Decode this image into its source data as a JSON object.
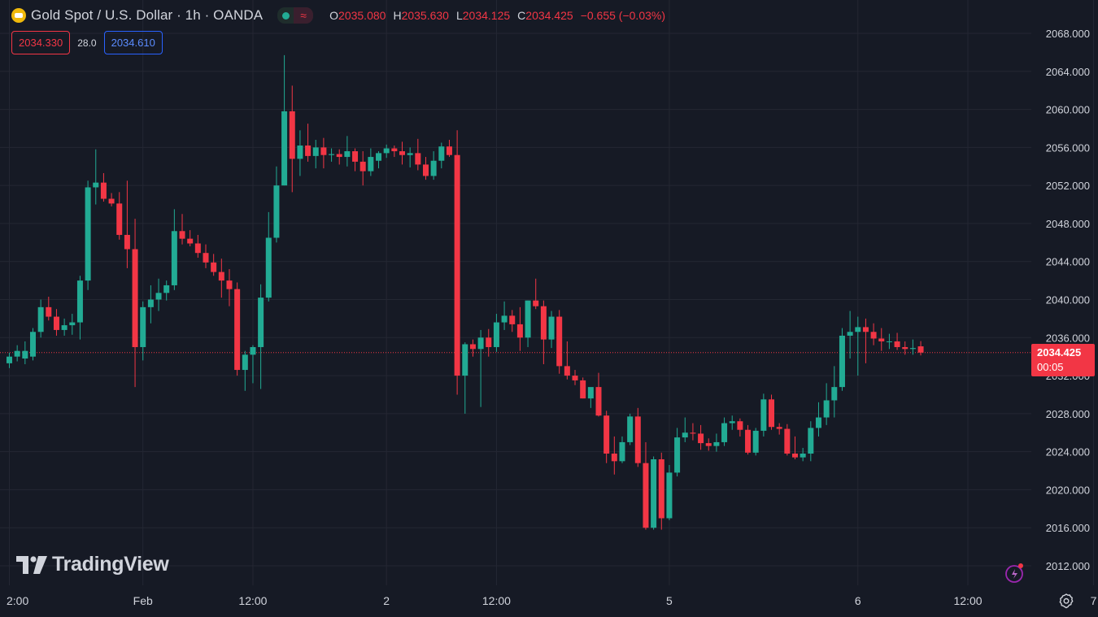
{
  "header": {
    "title": "Gold Spot / U.S. Dollar · 1h · OANDA",
    "ohlc": {
      "o_label": "O",
      "o": "2035.080",
      "h_label": "H",
      "h": "2035.630",
      "l_label": "L",
      "l": "2034.125",
      "c_label": "C",
      "c": "2034.425",
      "change": "−0.655 (−0.03%)"
    }
  },
  "trade": {
    "sell": "2034.330",
    "spread": "28.0",
    "buy": "2034.610"
  },
  "last_price": {
    "value": "2034.425",
    "countdown": "00:05"
  },
  "brand": "TradingView",
  "colors": {
    "up": "#22ab94",
    "down": "#f23645",
    "background": "#161a25",
    "grid": "#242733",
    "accent": "#2962ff"
  },
  "chart_data": {
    "type": "candlestick",
    "title": "Gold Spot / U.S. Dollar",
    "timeframe": "1h",
    "ylim": [
      2010.0,
      2070.0
    ],
    "y_ticks": [
      "2012.000",
      "2016.000",
      "2020.000",
      "2024.000",
      "2028.000",
      "2032.000",
      "2036.000",
      "2040.000",
      "2044.000",
      "2048.000",
      "2052.000",
      "2056.000",
      "2060.000",
      "2064.000",
      "2068.000"
    ],
    "x_tick_labels": [
      {
        "label": "2:00",
        "index": 0
      },
      {
        "label": "Feb",
        "index": 17
      },
      {
        "label": "12:00",
        "index": 31
      },
      {
        "label": "2",
        "index": 48
      },
      {
        "label": "12:00",
        "index": 62
      },
      {
        "label": "5",
        "index": 84
      },
      {
        "label": "6",
        "index": 108
      },
      {
        "label": "12:00",
        "index": 122
      },
      {
        "label": "7",
        "index": 138
      }
    ],
    "grid": true,
    "last_price_line": 2034.425,
    "candles": [
      {
        "o": 2033.3,
        "h": 2034.4,
        "l": 2032.8,
        "c": 2034.0
      },
      {
        "o": 2034.0,
        "h": 2035.2,
        "l": 2033.5,
        "c": 2034.6
      },
      {
        "o": 2033.8,
        "h": 2035.6,
        "l": 2033.2,
        "c": 2034.6
      },
      {
        "o": 2034.0,
        "h": 2037.0,
        "l": 2033.6,
        "c": 2036.6
      },
      {
        "o": 2036.6,
        "h": 2040.0,
        "l": 2036.0,
        "c": 2039.2
      },
      {
        "o": 2039.2,
        "h": 2040.3,
        "l": 2037.8,
        "c": 2038.2
      },
      {
        "o": 2038.2,
        "h": 2039.0,
        "l": 2036.2,
        "c": 2036.8
      },
      {
        "o": 2036.8,
        "h": 2038.0,
        "l": 2036.2,
        "c": 2037.3
      },
      {
        "o": 2037.3,
        "h": 2038.5,
        "l": 2036.3,
        "c": 2037.6
      },
      {
        "o": 2037.6,
        "h": 2042.5,
        "l": 2035.8,
        "c": 2042.0
      },
      {
        "o": 2042.0,
        "h": 2052.5,
        "l": 2041.0,
        "c": 2051.8
      },
      {
        "o": 2051.8,
        "h": 2055.8,
        "l": 2050.0,
        "c": 2052.3
      },
      {
        "o": 2052.3,
        "h": 2053.3,
        "l": 2050.3,
        "c": 2050.6
      },
      {
        "o": 2050.6,
        "h": 2051.2,
        "l": 2049.8,
        "c": 2050.1
      },
      {
        "o": 2050.1,
        "h": 2051.3,
        "l": 2046.3,
        "c": 2046.8
      },
      {
        "o": 2046.8,
        "h": 2052.5,
        "l": 2043.3,
        "c": 2045.3
      },
      {
        "o": 2045.3,
        "h": 2048.5,
        "l": 2030.8,
        "c": 2035.0
      },
      {
        "o": 2035.0,
        "h": 2039.8,
        "l": 2033.6,
        "c": 2039.2
      },
      {
        "o": 2039.2,
        "h": 2041.5,
        "l": 2037.5,
        "c": 2040.0
      },
      {
        "o": 2040.0,
        "h": 2042.2,
        "l": 2038.8,
        "c": 2040.7
      },
      {
        "o": 2040.7,
        "h": 2042.0,
        "l": 2039.9,
        "c": 2041.5
      },
      {
        "o": 2041.5,
        "h": 2049.5,
        "l": 2041.0,
        "c": 2047.2
      },
      {
        "o": 2047.2,
        "h": 2049.0,
        "l": 2045.8,
        "c": 2046.4
      },
      {
        "o": 2046.4,
        "h": 2047.3,
        "l": 2045.6,
        "c": 2045.9
      },
      {
        "o": 2045.9,
        "h": 2046.8,
        "l": 2044.4,
        "c": 2044.9
      },
      {
        "o": 2044.9,
        "h": 2045.8,
        "l": 2043.3,
        "c": 2043.9
      },
      {
        "o": 2043.9,
        "h": 2044.8,
        "l": 2042.5,
        "c": 2042.9
      },
      {
        "o": 2042.9,
        "h": 2044.3,
        "l": 2040.2,
        "c": 2042.0
      },
      {
        "o": 2042.0,
        "h": 2043.2,
        "l": 2039.3,
        "c": 2041.1
      },
      {
        "o": 2041.1,
        "h": 2041.8,
        "l": 2032.0,
        "c": 2032.6
      },
      {
        "o": 2032.6,
        "h": 2034.6,
        "l": 2030.4,
        "c": 2034.2
      },
      {
        "o": 2034.2,
        "h": 2035.2,
        "l": 2031.2,
        "c": 2035.0
      },
      {
        "o": 2035.0,
        "h": 2041.6,
        "l": 2030.6,
        "c": 2040.2
      },
      {
        "o": 2040.2,
        "h": 2049.2,
        "l": 2039.8,
        "c": 2046.5
      },
      {
        "o": 2046.5,
        "h": 2054.0,
        "l": 2046.0,
        "c": 2052.0
      },
      {
        "o": 2052.0,
        "h": 2065.7,
        "l": 2052.0,
        "c": 2059.8
      },
      {
        "o": 2059.8,
        "h": 2062.5,
        "l": 2051.3,
        "c": 2054.8
      },
      {
        "o": 2054.8,
        "h": 2057.8,
        "l": 2053.0,
        "c": 2056.2
      },
      {
        "o": 2056.2,
        "h": 2058.5,
        "l": 2054.5,
        "c": 2055.1
      },
      {
        "o": 2055.1,
        "h": 2056.8,
        "l": 2053.8,
        "c": 2056.0
      },
      {
        "o": 2056.0,
        "h": 2057.0,
        "l": 2053.8,
        "c": 2055.2
      },
      {
        "o": 2055.2,
        "h": 2055.9,
        "l": 2054.5,
        "c": 2055.3
      },
      {
        "o": 2055.3,
        "h": 2055.8,
        "l": 2054.2,
        "c": 2055.0
      },
      {
        "o": 2055.0,
        "h": 2057.2,
        "l": 2054.0,
        "c": 2055.6
      },
      {
        "o": 2055.6,
        "h": 2055.9,
        "l": 2053.5,
        "c": 2054.5
      },
      {
        "o": 2054.5,
        "h": 2055.6,
        "l": 2052.0,
        "c": 2053.5
      },
      {
        "o": 2053.5,
        "h": 2055.9,
        "l": 2053.0,
        "c": 2055.0
      },
      {
        "o": 2054.6,
        "h": 2055.6,
        "l": 2053.8,
        "c": 2055.4
      },
      {
        "o": 2055.4,
        "h": 2056.3,
        "l": 2054.9,
        "c": 2055.9
      },
      {
        "o": 2055.9,
        "h": 2056.2,
        "l": 2055.0,
        "c": 2055.6
      },
      {
        "o": 2055.6,
        "h": 2056.6,
        "l": 2054.2,
        "c": 2055.2
      },
      {
        "o": 2055.2,
        "h": 2056.0,
        "l": 2053.9,
        "c": 2055.4
      },
      {
        "o": 2055.4,
        "h": 2056.9,
        "l": 2053.6,
        "c": 2054.2
      },
      {
        "o": 2054.2,
        "h": 2055.0,
        "l": 2052.6,
        "c": 2053.0
      },
      {
        "o": 2053.0,
        "h": 2055.6,
        "l": 2052.6,
        "c": 2054.6
      },
      {
        "o": 2054.6,
        "h": 2056.5,
        "l": 2053.8,
        "c": 2056.1
      },
      {
        "o": 2056.1,
        "h": 2056.8,
        "l": 2055.0,
        "c": 2055.2
      },
      {
        "o": 2055.2,
        "h": 2057.8,
        "l": 2030.0,
        "c": 2032.0
      },
      {
        "o": 2032.0,
        "h": 2035.5,
        "l": 2028.0,
        "c": 2035.3
      },
      {
        "o": 2035.3,
        "h": 2035.8,
        "l": 2034.0,
        "c": 2034.8
      },
      {
        "o": 2034.8,
        "h": 2036.8,
        "l": 2028.7,
        "c": 2036.0
      },
      {
        "o": 2036.0,
        "h": 2036.9,
        "l": 2034.0,
        "c": 2035.0
      },
      {
        "o": 2035.0,
        "h": 2038.5,
        "l": 2034.5,
        "c": 2037.6
      },
      {
        "o": 2037.6,
        "h": 2039.8,
        "l": 2036.8,
        "c": 2038.3
      },
      {
        "o": 2038.3,
        "h": 2038.9,
        "l": 2036.6,
        "c": 2037.4
      },
      {
        "o": 2037.4,
        "h": 2039.2,
        "l": 2034.6,
        "c": 2036.0
      },
      {
        "o": 2036.0,
        "h": 2039.9,
        "l": 2035.0,
        "c": 2039.9
      },
      {
        "o": 2039.9,
        "h": 2042.2,
        "l": 2039.0,
        "c": 2039.3
      },
      {
        "o": 2039.3,
        "h": 2039.9,
        "l": 2033.2,
        "c": 2035.8
      },
      {
        "o": 2035.8,
        "h": 2038.8,
        "l": 2034.9,
        "c": 2038.2
      },
      {
        "o": 2038.2,
        "h": 2038.9,
        "l": 2032.2,
        "c": 2033.0
      },
      {
        "o": 2033.0,
        "h": 2035.6,
        "l": 2031.6,
        "c": 2032.0
      },
      {
        "o": 2032.0,
        "h": 2032.6,
        "l": 2031.0,
        "c": 2031.5
      },
      {
        "o": 2031.5,
        "h": 2031.8,
        "l": 2029.6,
        "c": 2029.6
      },
      {
        "o": 2029.6,
        "h": 2030.5,
        "l": 2028.6,
        "c": 2030.8
      },
      {
        "o": 2030.8,
        "h": 2032.3,
        "l": 2027.7,
        "c": 2027.8
      },
      {
        "o": 2027.8,
        "h": 2028.3,
        "l": 2022.8,
        "c": 2023.8
      },
      {
        "o": 2023.8,
        "h": 2025.6,
        "l": 2021.6,
        "c": 2023.0
      },
      {
        "o": 2023.0,
        "h": 2025.6,
        "l": 2022.8,
        "c": 2025.0
      },
      {
        "o": 2025.0,
        "h": 2028.0,
        "l": 2024.7,
        "c": 2027.7
      },
      {
        "o": 2027.7,
        "h": 2028.6,
        "l": 2022.4,
        "c": 2022.8
      },
      {
        "o": 2022.8,
        "h": 2025.0,
        "l": 2015.8,
        "c": 2016.0
      },
      {
        "o": 2016.0,
        "h": 2023.5,
        "l": 2015.8,
        "c": 2023.2
      },
      {
        "o": 2023.2,
        "h": 2023.9,
        "l": 2015.8,
        "c": 2017.0
      },
      {
        "o": 2017.0,
        "h": 2022.6,
        "l": 2016.8,
        "c": 2021.8
      },
      {
        "o": 2021.8,
        "h": 2026.5,
        "l": 2021.4,
        "c": 2025.5
      },
      {
        "o": 2025.5,
        "h": 2027.6,
        "l": 2025.0,
        "c": 2026.0
      },
      {
        "o": 2026.0,
        "h": 2027.0,
        "l": 2025.2,
        "c": 2025.9
      },
      {
        "o": 2025.9,
        "h": 2026.8,
        "l": 2024.2,
        "c": 2024.9
      },
      {
        "o": 2024.9,
        "h": 2025.4,
        "l": 2024.1,
        "c": 2024.6
      },
      {
        "o": 2024.6,
        "h": 2025.9,
        "l": 2024.0,
        "c": 2025.0
      },
      {
        "o": 2025.0,
        "h": 2027.6,
        "l": 2024.6,
        "c": 2027.0
      },
      {
        "o": 2027.0,
        "h": 2027.8,
        "l": 2026.3,
        "c": 2027.2
      },
      {
        "o": 2027.2,
        "h": 2027.5,
        "l": 2025.6,
        "c": 2026.3
      },
      {
        "o": 2026.3,
        "h": 2026.8,
        "l": 2023.7,
        "c": 2023.9
      },
      {
        "o": 2023.9,
        "h": 2026.5,
        "l": 2023.6,
        "c": 2026.2
      },
      {
        "o": 2026.2,
        "h": 2030.1,
        "l": 2025.6,
        "c": 2029.5
      },
      {
        "o": 2029.5,
        "h": 2030.0,
        "l": 2026.3,
        "c": 2026.6
      },
      {
        "o": 2026.6,
        "h": 2027.0,
        "l": 2025.8,
        "c": 2026.4
      },
      {
        "o": 2026.4,
        "h": 2026.9,
        "l": 2023.6,
        "c": 2023.8
      },
      {
        "o": 2023.8,
        "h": 2025.6,
        "l": 2023.2,
        "c": 2023.4
      },
      {
        "o": 2023.4,
        "h": 2024.4,
        "l": 2023.0,
        "c": 2023.8
      },
      {
        "o": 2023.8,
        "h": 2027.2,
        "l": 2023.0,
        "c": 2026.5
      },
      {
        "o": 2026.5,
        "h": 2029.2,
        "l": 2025.6,
        "c": 2027.6
      },
      {
        "o": 2027.6,
        "h": 2031.2,
        "l": 2026.8,
        "c": 2029.4
      },
      {
        "o": 2029.4,
        "h": 2033.0,
        "l": 2027.6,
        "c": 2030.8
      },
      {
        "o": 2030.8,
        "h": 2037.0,
        "l": 2030.4,
        "c": 2036.2
      },
      {
        "o": 2036.2,
        "h": 2038.8,
        "l": 2033.8,
        "c": 2036.6
      },
      {
        "o": 2036.6,
        "h": 2038.2,
        "l": 2032.0,
        "c": 2037.1
      },
      {
        "o": 2037.1,
        "h": 2038.0,
        "l": 2033.3,
        "c": 2036.6
      },
      {
        "o": 2036.6,
        "h": 2037.5,
        "l": 2035.2,
        "c": 2035.9
      },
      {
        "o": 2035.9,
        "h": 2037.0,
        "l": 2034.6,
        "c": 2035.6
      },
      {
        "o": 2035.6,
        "h": 2036.4,
        "l": 2034.8,
        "c": 2035.6
      },
      {
        "o": 2035.6,
        "h": 2036.5,
        "l": 2034.7,
        "c": 2035.0
      },
      {
        "o": 2035.0,
        "h": 2035.6,
        "l": 2034.2,
        "c": 2034.8
      },
      {
        "o": 2034.8,
        "h": 2035.8,
        "l": 2034.2,
        "c": 2034.9
      },
      {
        "o": 2035.08,
        "h": 2035.63,
        "l": 2034.125,
        "c": 2034.425
      }
    ]
  }
}
